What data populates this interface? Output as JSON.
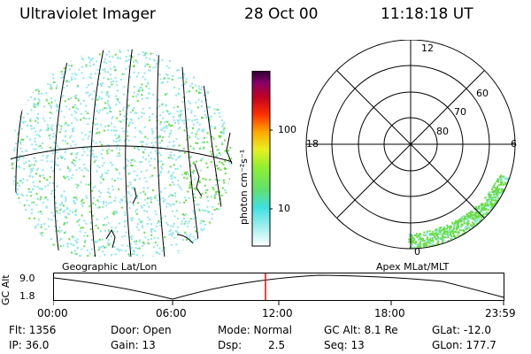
{
  "header": {
    "title": "Ultraviolet Imager",
    "date": "28 Oct 00",
    "time": "11:18:18 UT"
  },
  "colorbar": {
    "unit_label": "photon cm⁻²s⁻¹",
    "ticks": [
      "100",
      "10"
    ],
    "stops": [
      "#ffffff",
      "#a8f0f0",
      "#40e0e0",
      "#60e070",
      "#90f030",
      "#e8f020",
      "#ffa800",
      "#ff3000",
      "#c00020",
      "#8a006a",
      "#2a0030"
    ]
  },
  "geo_panel": {
    "label": "Geographic Lat/Lon"
  },
  "polar_panel": {
    "label": "Apex MLat/MLT",
    "mlt_labels": {
      "top": "12",
      "left": "18",
      "right": "6",
      "bottom": "0"
    },
    "lat_labels": [
      "60",
      "70",
      "80"
    ]
  },
  "altitude_plot": {
    "ylabel": "GC Alt",
    "yticks": [
      "9.0",
      "1.8"
    ],
    "xticks": [
      "00:00",
      "06:00",
      "12:00",
      "18:00",
      "23:59"
    ]
  },
  "info": {
    "flt": "Flt: 1356",
    "ip": "IP: 36.0",
    "door": "Door: Open",
    "gain": "Gain: 13",
    "mode": "Mode: Normal",
    "dsp": "Dsp:",
    "dsp_value": "2.5",
    "gcalt": "GC Alt: 8.1 Re",
    "seq": "Seq: 13",
    "glat": "GLat: -12.0",
    "glon": "GLon: 177.7"
  },
  "colors": {
    "marker": "#ff0000",
    "aurora_green": "#66dd44",
    "aurora_cyan": "#8ee8e8"
  }
}
